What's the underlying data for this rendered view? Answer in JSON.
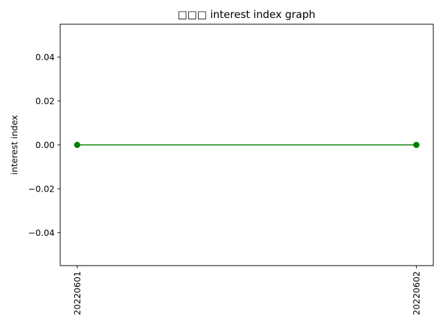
{
  "chart_data": {
    "type": "line",
    "title": "□□□ interest index graph",
    "xlabel": "",
    "ylabel": "interest index",
    "x": [
      "20220601",
      "20220602"
    ],
    "series": [
      {
        "values": [
          0.0,
          0.0
        ],
        "color": "#008000",
        "marker": "circle"
      }
    ],
    "ylim": [
      -0.055,
      0.055
    ],
    "yticks": [
      -0.04,
      -0.02,
      0.0,
      0.02,
      0.04
    ],
    "ytick_labels": [
      "−0.04",
      "−0.02",
      "0.00",
      "0.02",
      "0.04"
    ],
    "xtick_rotation": "vertical",
    "grid": false,
    "legend": "none"
  }
}
